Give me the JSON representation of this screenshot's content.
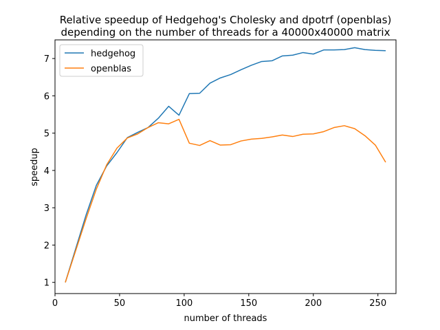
{
  "chart_data": {
    "type": "line",
    "title": "Relative speedup of Hedgehog's Cholesky and dpotrf (openblas)",
    "subtitle": "depending on the number of threads for a 40000x40000 matrix",
    "xlabel": "number of threads",
    "ylabel": "speedup",
    "xlim": [
      0,
      264
    ],
    "ylim": [
      0.7,
      7.5
    ],
    "x_ticks": [
      0,
      50,
      100,
      150,
      200,
      250
    ],
    "y_ticks": [
      1,
      2,
      3,
      4,
      5,
      6,
      7
    ],
    "grid": false,
    "legend_position": "top-left",
    "x": [
      8,
      16,
      24,
      32,
      40,
      48,
      56,
      64,
      72,
      80,
      88,
      96,
      104,
      112,
      120,
      128,
      136,
      144,
      152,
      160,
      168,
      176,
      184,
      192,
      200,
      208,
      216,
      224,
      232,
      240,
      248,
      256
    ],
    "series": [
      {
        "name": "hedgehog",
        "color": "#1f77b4",
        "values": [
          1.0,
          1.9,
          2.8,
          3.6,
          4.12,
          4.48,
          4.88,
          5.02,
          5.15,
          5.4,
          5.72,
          5.48,
          6.06,
          6.07,
          6.34,
          6.48,
          6.57,
          6.7,
          6.82,
          6.92,
          6.94,
          7.07,
          7.09,
          7.16,
          7.12,
          7.23,
          7.23,
          7.24,
          7.29,
          7.24,
          7.22,
          7.21
        ]
      },
      {
        "name": "openblas",
        "color": "#ff7f0e",
        "values": [
          1.0,
          1.85,
          2.7,
          3.5,
          4.15,
          4.6,
          4.87,
          4.98,
          5.15,
          5.28,
          5.25,
          5.37,
          4.73,
          4.67,
          4.8,
          4.68,
          4.69,
          4.79,
          4.84,
          4.86,
          4.9,
          4.95,
          4.91,
          4.97,
          4.98,
          5.04,
          5.15,
          5.2,
          5.12,
          4.93,
          4.68,
          4.22
        ]
      }
    ]
  }
}
